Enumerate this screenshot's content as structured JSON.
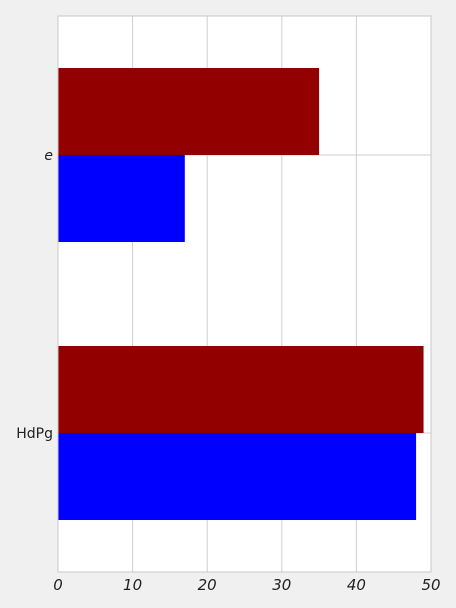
{
  "chart_data": {
    "type": "bar",
    "orientation": "horizontal",
    "categories": [
      "e",
      "HdPg"
    ],
    "category_styles": [
      "italic",
      "normal"
    ],
    "series": [
      {
        "color": "#0000ff",
        "values": [
          17,
          48
        ]
      },
      {
        "color": "#920000",
        "values": [
          35,
          49
        ]
      }
    ],
    "xlim": [
      0,
      50
    ],
    "xticks": [
      0,
      10,
      20,
      30,
      40,
      50
    ],
    "grid": true,
    "legend": "none",
    "title": "",
    "xlabel": "",
    "ylabel": ""
  }
}
